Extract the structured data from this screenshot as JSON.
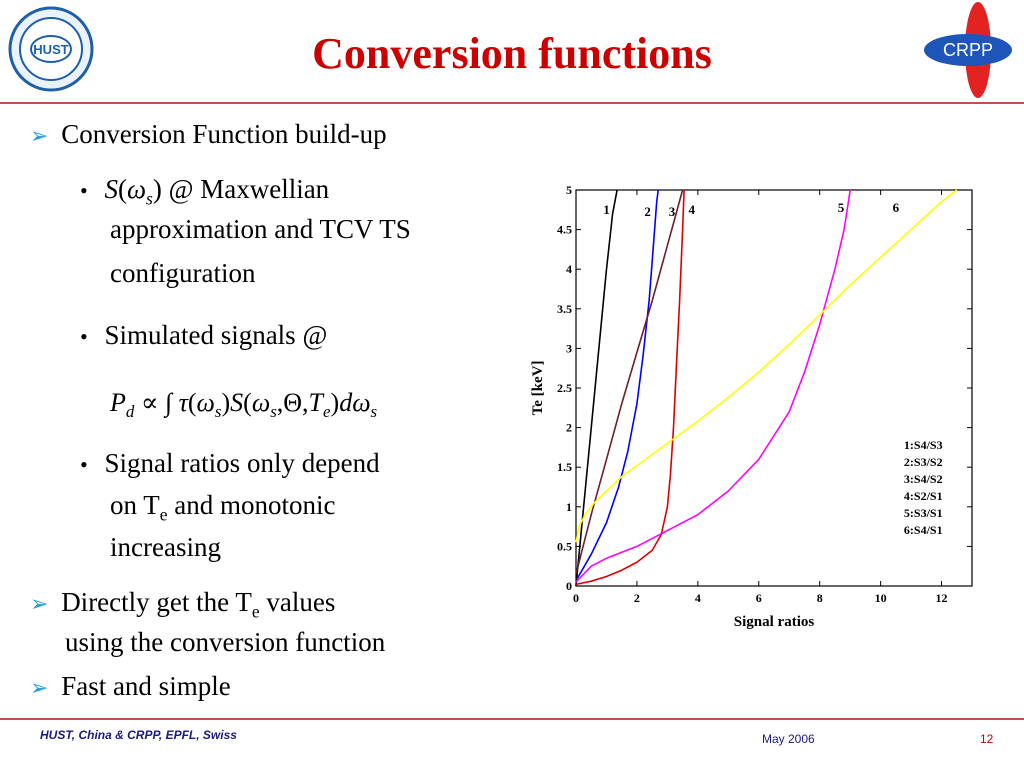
{
  "slide": {
    "title": "Conversion functions",
    "footer_left": "HUST, China   & CRPP,  EPFL,  Swiss",
    "footer_date": "May   2006",
    "page_number": "12"
  },
  "logos": {
    "left_text": "HUST",
    "right_text": "CRPP"
  },
  "bullets": {
    "b1": "Conversion Function build-up",
    "s1_tail": " @ Maxwellian",
    "s1_line2": "approximation and TCV TS",
    "s1_line3": "configuration",
    "s2": "Simulated signals @",
    "s3_line1": "Signal ratios only depend",
    "s3_line2_a": "on T",
    "s3_line2_sub": "e",
    "s3_line2_b": " and monotonic",
    "s3_line3": "increasing",
    "b2_line1_a": "Directly get the T",
    "b2_line1_sub": "e",
    "b2_line1_b": " values",
    "b2_line2": "using the conversion function",
    "b3": "Fast and simple"
  },
  "chart_data": {
    "type": "line",
    "xlabel": "Signal ratios",
    "ylabel": "Te [keV]",
    "xlim": [
      0,
      13
    ],
    "ylim": [
      0,
      5
    ],
    "xticks": [
      "0",
      "2",
      "4",
      "6",
      "8",
      "10",
      "12"
    ],
    "yticks": [
      "0",
      "0.5",
      "1",
      "1.5",
      "2",
      "2.5",
      "3",
      "3.5",
      "4",
      "4.5",
      "5"
    ],
    "legend_position": "bottom-right",
    "legend": [
      "1:S4/S3",
      "2:S3/S2",
      "3:S4/S2",
      "4:S2/S1",
      "5:S3/S1",
      "6:S4/S1"
    ],
    "series": [
      {
        "name": "1",
        "color": "#000000",
        "label_at": [
          1.0,
          4.7
        ],
        "x": [
          0,
          0.2,
          0.4,
          0.6,
          0.8,
          1.0,
          1.2,
          1.35
        ],
        "y": [
          0,
          0.8,
          1.6,
          2.4,
          3.2,
          4.0,
          4.7,
          5.0
        ]
      },
      {
        "name": "2",
        "color": "#0000ff",
        "label_at": [
          2.35,
          4.67
        ],
        "x": [
          0.05,
          0.5,
          1.0,
          1.4,
          1.7,
          2.0,
          2.2,
          2.4,
          2.5,
          2.6,
          2.65,
          2.7
        ],
        "y": [
          0.1,
          0.4,
          0.8,
          1.25,
          1.7,
          2.3,
          2.9,
          3.6,
          4.1,
          4.6,
          4.85,
          5.0
        ]
      },
      {
        "name": "3",
        "color": "#6b1f2a",
        "label_at": [
          3.15,
          4.67
        ],
        "x": [
          0,
          0.5,
          1.0,
          1.5,
          2.0,
          2.5,
          3.0,
          3.5
        ],
        "y": [
          0.15,
          0.9,
          1.6,
          2.3,
          2.95,
          3.6,
          4.3,
          5.0
        ]
      },
      {
        "name": "4",
        "color": "#dd0000",
        "label_at": [
          3.8,
          4.7
        ],
        "x": [
          0,
          0.5,
          1.0,
          1.5,
          2.0,
          2.5,
          2.8,
          3.0,
          3.1,
          3.2,
          3.3,
          3.4,
          3.5,
          3.55
        ],
        "y": [
          0.02,
          0.06,
          0.12,
          0.2,
          0.3,
          0.45,
          0.65,
          1.0,
          1.4,
          2.0,
          2.8,
          3.6,
          4.5,
          5.0
        ]
      },
      {
        "name": "5",
        "color": "#ff00ff",
        "label_at": [
          8.7,
          4.72
        ],
        "x": [
          0,
          0.5,
          1.0,
          2.0,
          3.0,
          4.0,
          5.0,
          6.0,
          7.0,
          7.5,
          8.0,
          8.5,
          8.8,
          9.0
        ],
        "y": [
          0.05,
          0.25,
          0.35,
          0.5,
          0.7,
          0.9,
          1.2,
          1.6,
          2.2,
          2.7,
          3.3,
          4.0,
          4.5,
          5.0
        ]
      },
      {
        "name": "6",
        "color": "#ffff00",
        "label_at": [
          10.5,
          4.72
        ],
        "x": [
          0,
          0.1,
          0.3,
          0.6,
          1.0,
          1.5,
          2.0,
          3.0,
          4.0,
          5.0,
          6.0,
          7.0,
          8.0,
          9.0,
          10.0,
          11.0,
          12.0,
          12.5
        ],
        "y": [
          0.55,
          0.75,
          0.9,
          1.05,
          1.2,
          1.38,
          1.52,
          1.8,
          2.08,
          2.38,
          2.7,
          3.05,
          3.42,
          3.8,
          4.15,
          4.5,
          4.85,
          5.0
        ]
      }
    ]
  }
}
